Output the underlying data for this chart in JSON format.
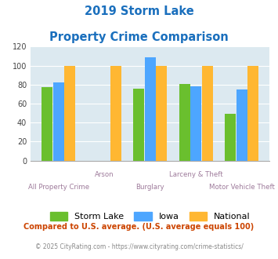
{
  "title_line1": "2019 Storm Lake",
  "title_line2": "Property Crime Comparison",
  "categories": [
    "All Property Crime",
    "Arson",
    "Burglary",
    "Larceny & Theft",
    "Motor Vehicle Theft"
  ],
  "storm_lake": [
    77,
    0,
    76,
    81,
    49
  ],
  "iowa": [
    82,
    0,
    109,
    78,
    75
  ],
  "national": [
    100,
    100,
    100,
    100,
    100
  ],
  "storm_lake_color": "#6abf2e",
  "iowa_color": "#4da6ff",
  "national_color": "#ffb732",
  "title_color": "#1a6fbd",
  "xlabel_color": "#9e7b9b",
  "plot_bg_color": "#dce9f0",
  "ylim": [
    0,
    120
  ],
  "yticks": [
    0,
    20,
    40,
    60,
    80,
    100,
    120
  ],
  "footnote1": "Compared to U.S. average. (U.S. average equals 100)",
  "footnote2": "© 2025 CityRating.com - https://www.cityrating.com/crime-statistics/",
  "footnote1_color": "#cc4400",
  "footnote2_color": "#888888"
}
